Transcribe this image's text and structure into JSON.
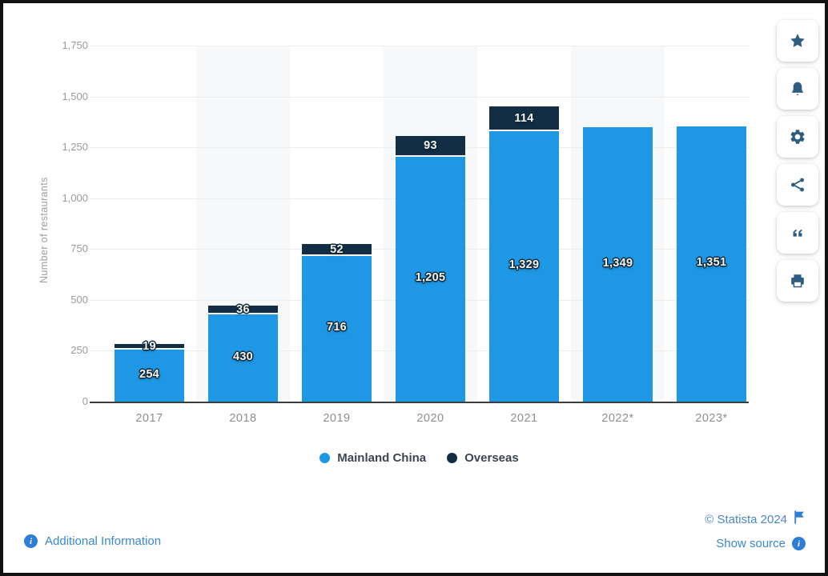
{
  "chart_data": {
    "type": "bar",
    "stacked": true,
    "title": "",
    "ylabel": "Number of restaurants",
    "xlabel": "",
    "categories": [
      "2017",
      "2018",
      "2019",
      "2020",
      "2021",
      "2022*",
      "2023*"
    ],
    "series": [
      {
        "name": "Mainland China",
        "color": "#1e97e4",
        "values": [
          254,
          430,
          716,
          1205,
          1329,
          1349,
          1351
        ],
        "labels": [
          "254",
          "430",
          "716",
          "1,205",
          "1,329",
          "1,349",
          "1,351"
        ]
      },
      {
        "name": "Overseas",
        "color": "#132e44",
        "values": [
          19,
          36,
          52,
          93,
          114,
          0,
          0
        ],
        "labels": [
          "19",
          "36",
          "52",
          "93",
          "114",
          "",
          ""
        ]
      }
    ],
    "ylim": [
      0,
      1750
    ],
    "ytick_step": 250,
    "ytick_labels": [
      "0",
      "250",
      "500",
      "750",
      "1,000",
      "1,250",
      "1,500",
      "1,750"
    ],
    "grid": "horizontal",
    "legend_position": "bottom"
  },
  "toolbar": {
    "buttons": [
      {
        "id": "favorite",
        "icon": "star-icon"
      },
      {
        "id": "alerts",
        "icon": "bell-icon"
      },
      {
        "id": "settings",
        "icon": "gear-icon"
      },
      {
        "id": "share",
        "icon": "share-icon"
      },
      {
        "id": "cite",
        "icon": "quote-icon"
      },
      {
        "id": "print",
        "icon": "print-icon"
      }
    ]
  },
  "footer": {
    "additional_information": "Additional Information",
    "copyright": "© Statista 2024",
    "show_source": "Show source"
  },
  "colors": {
    "mainland_china": "#1e97e4",
    "overseas": "#132e44",
    "link_blue": "#3a87d2",
    "copyright_blue": "#4a87c9",
    "toolbar_icon": "#2f5d80",
    "info_badge": "#2e7ed8",
    "axis_text": "#9b9b9b",
    "bar_label_text": "#f6f1e6",
    "bar_label_outline": "#0c2a3e"
  }
}
